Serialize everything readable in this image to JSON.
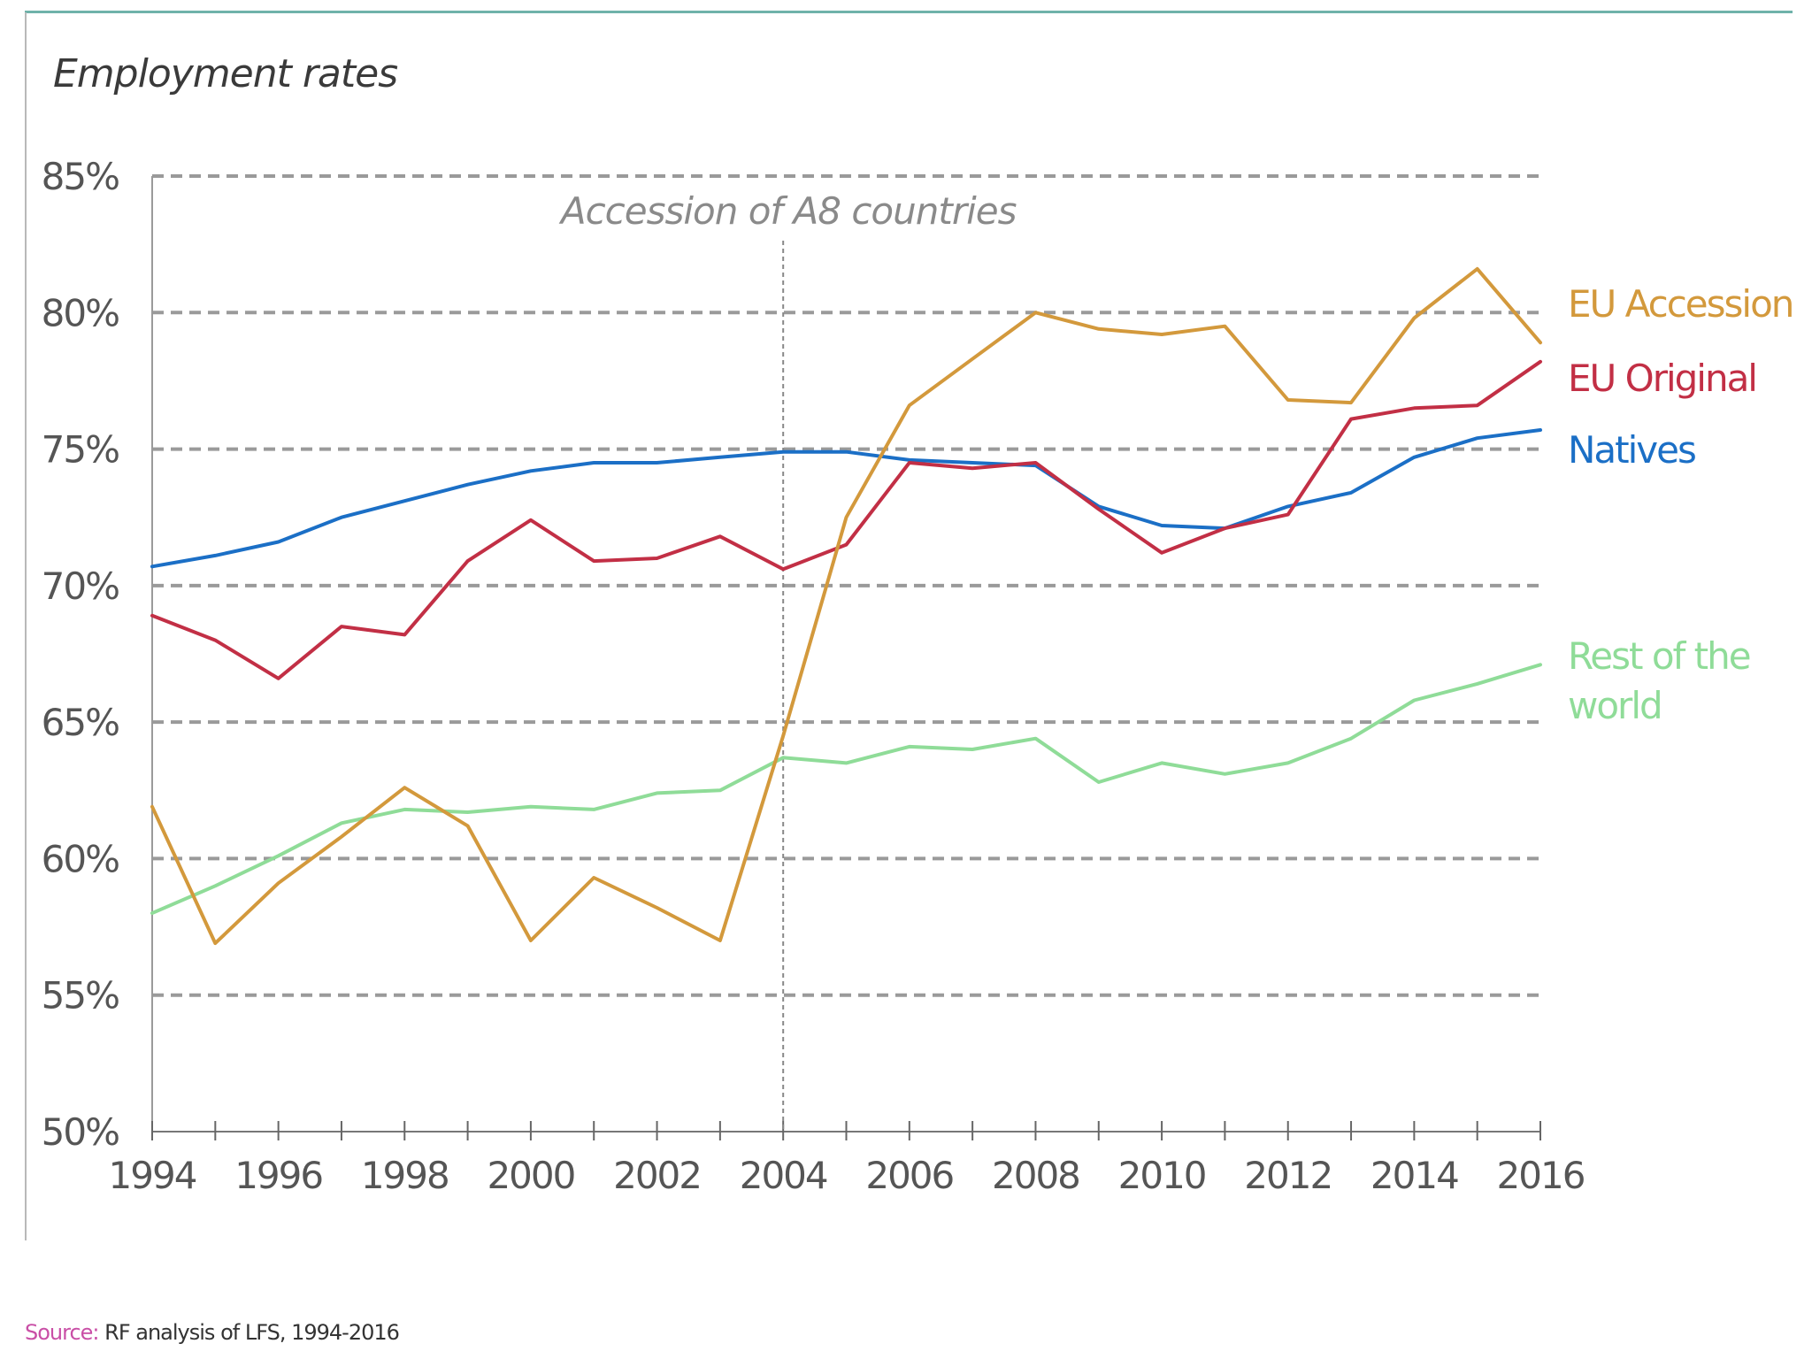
{
  "title": "Employment rates",
  "source": {
    "label": "Source:",
    "text": "RF analysis of LFS, 1994-2016"
  },
  "colors": {
    "eu_accession": "#d3993c",
    "eu_original": "#c22f45",
    "natives": "#1b6fc6",
    "rest_of_world": "#8fdc98",
    "grid": "#9a9a9a",
    "axis_text": "#555555",
    "frame": "#6fb2aa"
  },
  "chart_data": {
    "type": "line",
    "title": "Employment rates",
    "ylim": [
      50,
      85
    ],
    "y_ticks": [
      50,
      55,
      60,
      65,
      70,
      75,
      80,
      85
    ],
    "y_tick_suffix": "%",
    "x_ticks": [
      1994,
      1996,
      1998,
      2000,
      2002,
      2004,
      2006,
      2008,
      2010,
      2012,
      2014,
      2016
    ],
    "grid": "horizontal dashed",
    "annotation": {
      "label": "Accession of A8 countries",
      "x": 2004
    },
    "x": [
      1994,
      1995,
      1996,
      1997,
      1998,
      1999,
      2000,
      2001,
      2002,
      2003,
      2004,
      2005,
      2006,
      2007,
      2008,
      2009,
      2010,
      2011,
      2012,
      2013,
      2014,
      2015,
      2016
    ],
    "series": [
      {
        "name": "EU Accession",
        "color": "#d3993c",
        "values": [
          61.9,
          56.9,
          59.1,
          60.8,
          62.6,
          61.2,
          57.0,
          59.3,
          58.2,
          57.0,
          64.5,
          72.5,
          76.6,
          78.3,
          80.0,
          79.4,
          79.2,
          79.5,
          76.8,
          76.7,
          79.8,
          81.6,
          78.9
        ]
      },
      {
        "name": "EU Original",
        "color": "#c22f45",
        "values": [
          68.9,
          68.0,
          66.6,
          68.5,
          68.2,
          70.9,
          72.4,
          70.9,
          71.0,
          71.8,
          70.6,
          71.5,
          74.5,
          74.3,
          74.5,
          72.8,
          71.2,
          72.1,
          72.6,
          76.1,
          76.5,
          76.6,
          78.2
        ]
      },
      {
        "name": "Natives",
        "color": "#1b6fc6",
        "values": [
          70.7,
          71.1,
          71.6,
          72.5,
          73.1,
          73.7,
          74.2,
          74.5,
          74.5,
          74.7,
          74.9,
          74.9,
          74.6,
          74.5,
          74.4,
          72.9,
          72.2,
          72.1,
          72.9,
          73.4,
          74.7,
          75.4,
          75.7
        ]
      },
      {
        "name": "Rest of the world",
        "label_lines": [
          "Rest of the",
          "world"
        ],
        "color": "#8fdc98",
        "values": [
          58.0,
          59.0,
          60.1,
          61.3,
          61.8,
          61.7,
          61.9,
          61.8,
          62.4,
          62.5,
          63.7,
          63.5,
          64.1,
          64.0,
          64.4,
          62.8,
          63.5,
          63.1,
          63.5,
          64.4,
          65.8,
          66.4,
          67.1
        ]
      }
    ]
  }
}
